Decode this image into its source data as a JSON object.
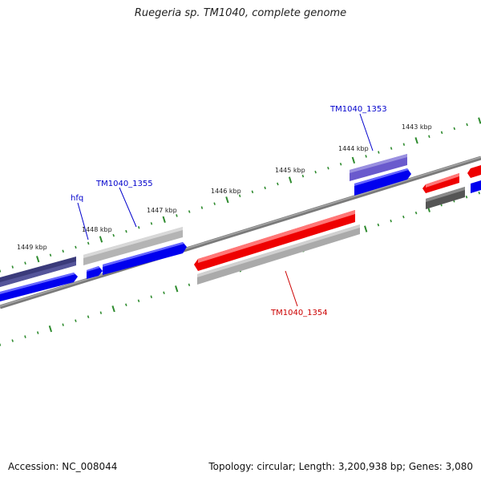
{
  "title": "Ruegeria sp. TM1040, complete genome",
  "accession": "Accession: NC_008044",
  "topology": "Topology: circular; Length: 3,200,938 bp; Genes: 3,080",
  "colors": {
    "tick": "#2e8b2e",
    "backbone": "#808080",
    "label_blue": "#0000cc",
    "label_red": "#cc0000"
  },
  "scale_labels": [
    "1443 kbp",
    "1444 kbp",
    "1445 kbp",
    "1446 kbp",
    "1447 kbp",
    "1448 kbp",
    "1449 kbp"
  ],
  "gene_labels": {
    "tm1040_1353": "TM1040_1353",
    "tm1040_1355": "TM1040_1355",
    "hfq": "hfq",
    "tm1040_1354": "TM1040_1354"
  }
}
